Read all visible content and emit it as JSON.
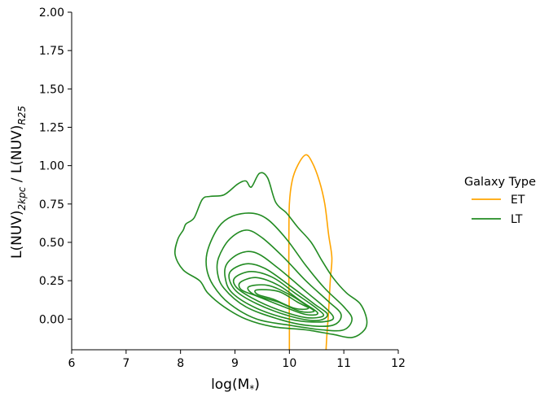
{
  "chart_data": {
    "type": "kde-contour",
    "xlabel": "log(M",
    "xlabel_sub": "*",
    "xlabel_end": ")",
    "ylabel_parts": [
      "L(NUV)",
      "2kpc",
      " / L(NUV)",
      "R25"
    ],
    "xlim": [
      6,
      12
    ],
    "ylim": [
      -0.2,
      2.0
    ],
    "x_ticks": [
      6,
      7,
      8,
      9,
      10,
      11,
      12
    ],
    "y_ticks": [
      0.0,
      0.25,
      0.5,
      0.75,
      1.0,
      1.25,
      1.5,
      1.75,
      2.0
    ],
    "x_tick_labels": [
      "6",
      "7",
      "8",
      "9",
      "10",
      "11",
      "12"
    ],
    "y_tick_labels": [
      "0.00",
      "0.25",
      "0.50",
      "0.75",
      "1.00",
      "1.25",
      "1.50",
      "1.75",
      "2.00"
    ],
    "legend": {
      "title": "Galaxy Type",
      "placement": "right-outside",
      "entries": [
        {
          "label": "ET",
          "color": "#ffa500"
        },
        {
          "label": "LT",
          "color": "#228b22"
        }
      ]
    },
    "series": [
      {
        "name": "ET",
        "color": "#ffa500",
        "contours": [
          [
            [
              10.0,
              -0.22
            ],
            [
              10.0,
              0.0
            ],
            [
              9.99,
              0.25
            ],
            [
              9.99,
              0.5
            ],
            [
              10.0,
              0.75
            ],
            [
              10.05,
              0.9
            ],
            [
              10.15,
              1.0
            ],
            [
              10.3,
              1.07
            ],
            [
              10.42,
              1.02
            ],
            [
              10.55,
              0.9
            ],
            [
              10.65,
              0.75
            ],
            [
              10.72,
              0.55
            ],
            [
              10.78,
              0.4
            ],
            [
              10.75,
              0.25
            ],
            [
              10.72,
              0.05
            ],
            [
              10.69,
              -0.1
            ],
            [
              10.67,
              -0.22
            ]
          ]
        ]
      },
      {
        "name": "LT",
        "color": "#228b22",
        "contours": [
          [
            [
              8.35,
              0.25
            ],
            [
              8.05,
              0.32
            ],
            [
              7.9,
              0.42
            ],
            [
              7.95,
              0.52
            ],
            [
              8.05,
              0.58
            ],
            [
              8.1,
              0.62
            ],
            [
              8.25,
              0.66
            ],
            [
              8.4,
              0.78
            ],
            [
              8.55,
              0.8
            ],
            [
              8.8,
              0.81
            ],
            [
              9.05,
              0.88
            ],
            [
              9.2,
              0.9
            ],
            [
              9.3,
              0.86
            ],
            [
              9.45,
              0.95
            ],
            [
              9.6,
              0.92
            ],
            [
              9.75,
              0.76
            ],
            [
              9.95,
              0.69
            ],
            [
              10.15,
              0.6
            ],
            [
              10.4,
              0.5
            ],
            [
              10.6,
              0.38
            ],
            [
              10.8,
              0.27
            ],
            [
              11.05,
              0.17
            ],
            [
              11.3,
              0.1
            ],
            [
              11.42,
              0.0
            ],
            [
              11.38,
              -0.07
            ],
            [
              11.15,
              -0.12
            ],
            [
              10.8,
              -0.1
            ],
            [
              10.3,
              -0.07
            ],
            [
              9.7,
              -0.05
            ],
            [
              9.2,
              0.0
            ],
            [
              8.8,
              0.08
            ],
            [
              8.5,
              0.17
            ]
          ],
          [
            [
              8.5,
              0.45
            ],
            [
              8.7,
              0.6
            ],
            [
              8.95,
              0.67
            ],
            [
              9.3,
              0.69
            ],
            [
              9.6,
              0.65
            ],
            [
              9.95,
              0.52
            ],
            [
              10.3,
              0.35
            ],
            [
              10.65,
              0.2
            ],
            [
              11.0,
              0.08
            ],
            [
              11.15,
              0.0
            ],
            [
              11.0,
              -0.07
            ],
            [
              10.6,
              -0.07
            ],
            [
              10.0,
              -0.04
            ],
            [
              9.4,
              0.0
            ],
            [
              8.9,
              0.1
            ],
            [
              8.6,
              0.22
            ],
            [
              8.48,
              0.33
            ]
          ],
          [
            [
              8.7,
              0.4
            ],
            [
              8.9,
              0.52
            ],
            [
              9.2,
              0.58
            ],
            [
              9.5,
              0.53
            ],
            [
              9.9,
              0.4
            ],
            [
              10.3,
              0.25
            ],
            [
              10.7,
              0.12
            ],
            [
              10.95,
              0.03
            ],
            [
              10.8,
              -0.04
            ],
            [
              10.3,
              -0.04
            ],
            [
              9.8,
              0.0
            ],
            [
              9.2,
              0.08
            ],
            [
              8.8,
              0.2
            ],
            [
              8.68,
              0.3
            ]
          ],
          [
            [
              8.85,
              0.36
            ],
            [
              9.1,
              0.43
            ],
            [
              9.4,
              0.43
            ],
            [
              9.8,
              0.33
            ],
            [
              10.3,
              0.18
            ],
            [
              10.7,
              0.06
            ],
            [
              10.8,
              0.0
            ],
            [
              10.5,
              -0.02
            ],
            [
              10.0,
              0.0
            ],
            [
              9.4,
              0.07
            ],
            [
              8.95,
              0.17
            ],
            [
              8.82,
              0.27
            ]
          ],
          [
            [
              8.9,
              0.3
            ],
            [
              9.2,
              0.36
            ],
            [
              9.55,
              0.33
            ],
            [
              10.0,
              0.22
            ],
            [
              10.45,
              0.1
            ],
            [
              10.7,
              0.03
            ],
            [
              10.5,
              -0.01
            ],
            [
              10.0,
              0.02
            ],
            [
              9.4,
              0.1
            ],
            [
              9.0,
              0.19
            ]
          ],
          [
            [
              9.0,
              0.27
            ],
            [
              9.3,
              0.31
            ],
            [
              9.7,
              0.27
            ],
            [
              10.1,
              0.17
            ],
            [
              10.5,
              0.07
            ],
            [
              10.62,
              0.02
            ],
            [
              10.3,
              0.01
            ],
            [
              9.8,
              0.06
            ],
            [
              9.3,
              0.14
            ],
            [
              9.02,
              0.21
            ]
          ],
          [
            [
              9.1,
              0.24
            ],
            [
              9.4,
              0.27
            ],
            [
              9.8,
              0.22
            ],
            [
              10.2,
              0.12
            ],
            [
              10.52,
              0.04
            ],
            [
              10.3,
              0.03
            ],
            [
              9.9,
              0.08
            ],
            [
              9.4,
              0.15
            ],
            [
              9.12,
              0.19
            ]
          ],
          [
            [
              9.25,
              0.21
            ],
            [
              9.6,
              0.22
            ],
            [
              10.0,
              0.16
            ],
            [
              10.35,
              0.08
            ],
            [
              10.45,
              0.05
            ],
            [
              10.2,
              0.05
            ],
            [
              9.8,
              0.11
            ],
            [
              9.35,
              0.16
            ]
          ],
          [
            [
              9.4,
              0.19
            ],
            [
              9.8,
              0.18
            ],
            [
              10.15,
              0.11
            ],
            [
              10.35,
              0.07
            ],
            [
              10.1,
              0.07
            ],
            [
              9.7,
              0.13
            ],
            [
              9.42,
              0.16
            ]
          ]
        ]
      }
    ]
  }
}
